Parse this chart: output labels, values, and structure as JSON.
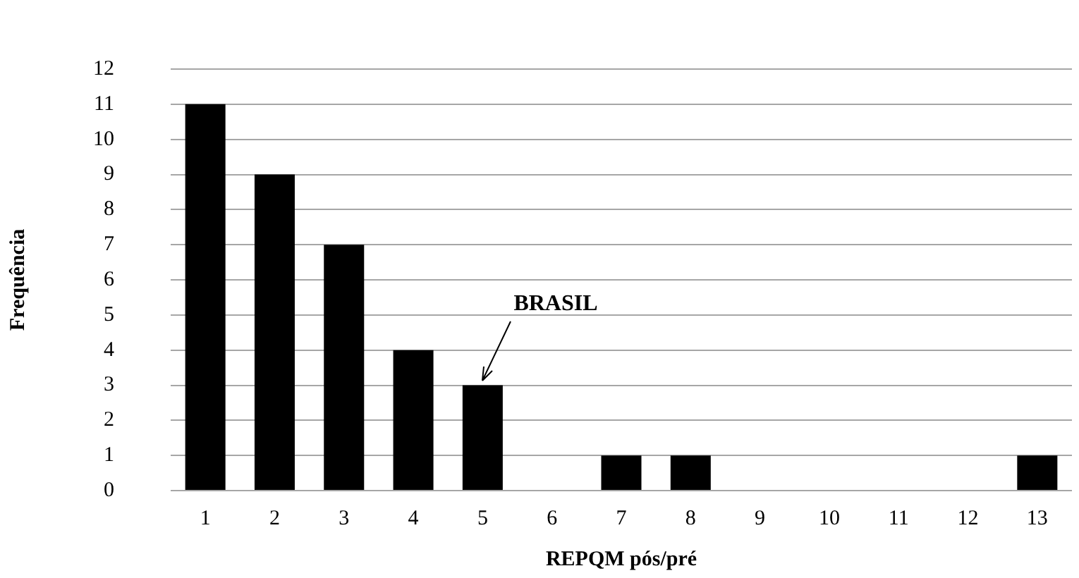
{
  "chart_data": {
    "type": "bar",
    "xlabel": "REPQM pós/pré",
    "ylabel": "Frequência",
    "categories": [
      "1",
      "2",
      "3",
      "4",
      "5",
      "6",
      "7",
      "8",
      "9",
      "10",
      "11",
      "12",
      "13"
    ],
    "values": [
      11,
      9,
      7,
      4,
      3,
      0,
      1,
      1,
      0,
      0,
      0,
      0,
      1
    ],
    "color": "#000000",
    "ylim": [
      0,
      12
    ],
    "yticks": [
      0,
      1,
      2,
      3,
      4,
      5,
      6,
      7,
      8,
      9,
      10,
      11,
      12
    ],
    "grid": "y",
    "legend": false,
    "annotations": [
      {
        "text": "BRASIL",
        "x": "5",
        "y": 3
      }
    ]
  }
}
